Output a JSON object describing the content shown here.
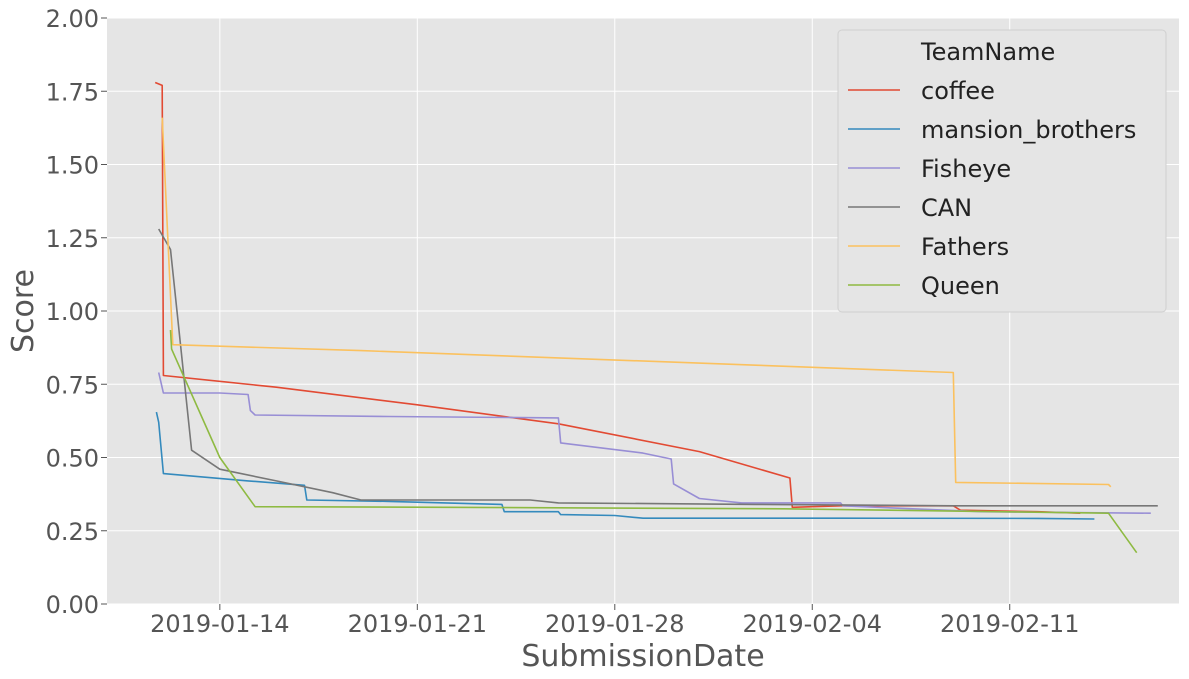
{
  "chart_data": {
    "type": "line",
    "xlabel": "SubmissionDate",
    "ylabel": "Score",
    "xlim": [
      "2019-01-10",
      "2019-02-17"
    ],
    "ylim": [
      0,
      2.0
    ],
    "x_ticks": [
      "2019-01-14",
      "2019-01-21",
      "2019-01-28",
      "2019-02-04",
      "2019-02-11"
    ],
    "y_ticks": [
      "0.00",
      "0.25",
      "0.50",
      "0.75",
      "1.00",
      "1.25",
      "1.50",
      "1.75",
      "2.00"
    ],
    "grid": true,
    "legend": {
      "title": "TeamName",
      "placement": "top-right"
    },
    "series": [
      {
        "name": "coffee",
        "color": "#E24A33",
        "points": [
          [
            "2019-01-11T17:00",
            1.78
          ],
          [
            "2019-01-11T23:00",
            1.77
          ],
          [
            "2019-01-12T00:00",
            0.78
          ],
          [
            "2019-01-16T00:00",
            0.74
          ],
          [
            "2019-01-21T00:00",
            0.68
          ],
          [
            "2019-01-26T00:00",
            0.615
          ],
          [
            "2019-01-31T00:00",
            0.52
          ],
          [
            "2019-02-03T05:00",
            0.43
          ],
          [
            "2019-02-03T07:00",
            0.33
          ],
          [
            "2019-02-05T00:00",
            0.335
          ],
          [
            "2019-02-09T00:00",
            0.335
          ],
          [
            "2019-02-09T06:00",
            0.32
          ],
          [
            "2019-02-12T00:00",
            0.315
          ],
          [
            "2019-02-13T12:00",
            0.31
          ]
        ]
      },
      {
        "name": "mansion_brothers",
        "color": "#348ABD",
        "points": [
          [
            "2019-01-11T18:00",
            0.655
          ],
          [
            "2019-01-11T20:00",
            0.62
          ],
          [
            "2019-01-12T00:00",
            0.445
          ],
          [
            "2019-01-15T00:00",
            0.42
          ],
          [
            "2019-01-17T00:00",
            0.405
          ],
          [
            "2019-01-17T02:00",
            0.355
          ],
          [
            "2019-01-20T00:00",
            0.35
          ],
          [
            "2019-01-24T00:00",
            0.34
          ],
          [
            "2019-01-24T02:00",
            0.315
          ],
          [
            "2019-01-26T00:00",
            0.315
          ],
          [
            "2019-01-26T02:00",
            0.305
          ],
          [
            "2019-01-28T00:00",
            0.302
          ],
          [
            "2019-01-29T00:00",
            0.293
          ],
          [
            "2019-02-05T00:00",
            0.293
          ],
          [
            "2019-02-12T00:00",
            0.292
          ],
          [
            "2019-02-14T00:00",
            0.29
          ]
        ]
      },
      {
        "name": "Fisheye",
        "color": "#988ED5",
        "points": [
          [
            "2019-01-11T20:00",
            0.79
          ],
          [
            "2019-01-12T00:00",
            0.72
          ],
          [
            "2019-01-14T00:00",
            0.72
          ],
          [
            "2019-01-15T00:00",
            0.715
          ],
          [
            "2019-01-15T02:00",
            0.66
          ],
          [
            "2019-01-15T06:00",
            0.645
          ],
          [
            "2019-01-20T00:00",
            0.64
          ],
          [
            "2019-01-26T00:00",
            0.635
          ],
          [
            "2019-01-26T02:00",
            0.55
          ],
          [
            "2019-01-29T00:00",
            0.515
          ],
          [
            "2019-01-30T00:00",
            0.495
          ],
          [
            "2019-01-30T02:00",
            0.41
          ],
          [
            "2019-01-31T00:00",
            0.36
          ],
          [
            "2019-02-01T12:00",
            0.345
          ],
          [
            "2019-02-05T00:00",
            0.345
          ],
          [
            "2019-02-05T02:00",
            0.335
          ],
          [
            "2019-02-10T00:00",
            0.315
          ],
          [
            "2019-02-16T00:00",
            0.31
          ]
        ]
      },
      {
        "name": "CAN",
        "color": "#777777",
        "points": [
          [
            "2019-01-11T20:00",
            1.28
          ],
          [
            "2019-01-12T06:00",
            1.21
          ],
          [
            "2019-01-13T00:00",
            0.525
          ],
          [
            "2019-01-14T00:00",
            0.46
          ],
          [
            "2019-01-16T00:00",
            0.42
          ],
          [
            "2019-01-18T00:00",
            0.38
          ],
          [
            "2019-01-19T00:00",
            0.355
          ],
          [
            "2019-01-22T00:00",
            0.355
          ],
          [
            "2019-01-25T00:00",
            0.355
          ],
          [
            "2019-01-26T00:00",
            0.345
          ],
          [
            "2019-02-02T00:00",
            0.34
          ],
          [
            "2019-02-09T00:00",
            0.335
          ],
          [
            "2019-02-16T06:00",
            0.335
          ]
        ]
      },
      {
        "name": "Fathers",
        "color": "#FBC15E",
        "points": [
          [
            "2019-01-11T23:00",
            1.66
          ],
          [
            "2019-01-12T08:00",
            0.885
          ],
          [
            "2019-01-19T00:00",
            0.865
          ],
          [
            "2019-01-26T00:00",
            0.84
          ],
          [
            "2019-02-02T00:00",
            0.815
          ],
          [
            "2019-02-09T00:00",
            0.79
          ],
          [
            "2019-02-09T02:00",
            0.415
          ],
          [
            "2019-02-14T12:00",
            0.408
          ],
          [
            "2019-02-14T14:00",
            0.4
          ]
        ]
      },
      {
        "name": "Queen",
        "color": "#8EBA42",
        "points": [
          [
            "2019-01-12T06:00",
            0.935
          ],
          [
            "2019-01-12T07:00",
            0.87
          ],
          [
            "2019-01-14T00:00",
            0.5
          ],
          [
            "2019-01-15T06:00",
            0.332
          ],
          [
            "2019-01-22T00:00",
            0.33
          ],
          [
            "2019-02-03T00:00",
            0.325
          ],
          [
            "2019-02-14T12:00",
            0.31
          ],
          [
            "2019-02-15T12:00",
            0.175
          ]
        ]
      }
    ]
  }
}
